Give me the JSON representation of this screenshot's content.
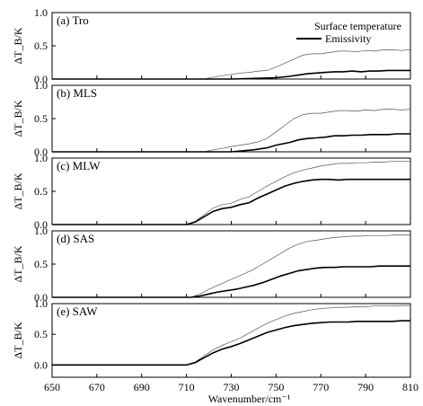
{
  "chart_data": {
    "type": "line",
    "shared_x": {
      "label": "Wavenumber/cm⁻¹",
      "lim": [
        650,
        810
      ],
      "ticks": [
        650,
        670,
        690,
        710,
        730,
        750,
        770,
        790,
        810
      ]
    },
    "legend": {
      "placement": "top-right",
      "entries": [
        "Surface temperature",
        "Emissivity"
      ]
    },
    "ylabel": "ΔT_B/K",
    "panels": [
      {
        "label": "(a) Tro",
        "ylim": [
          0,
          1
        ],
        "yticks": [
          "0.0",
          "0.5",
          "1.0"
        ],
        "series": [
          {
            "name": "Surface temperature",
            "x": [
              650,
              700,
              718,
              722,
              726,
              730,
              734,
              738,
              742,
              746,
              750,
              754,
              758,
              762,
              766,
              770,
              774,
              778,
              782,
              786,
              790,
              794,
              798,
              802,
              806,
              810
            ],
            "y": [
              0,
              0,
              0,
              0.03,
              0.05,
              0.07,
              0.09,
              0.1,
              0.12,
              0.13,
              0.18,
              0.24,
              0.3,
              0.36,
              0.38,
              0.38,
              0.4,
              0.42,
              0.42,
              0.41,
              0.43,
              0.42,
              0.44,
              0.44,
              0.43,
              0.44
            ]
          },
          {
            "name": "Emissivity",
            "x": [
              650,
              700,
              730,
              740,
              750,
              756,
              760,
              764,
              768,
              772,
              776,
              780,
              784,
              788,
              792,
              796,
              800,
              804,
              808,
              810
            ],
            "y": [
              0,
              0,
              0,
              0.01,
              0.02,
              0.04,
              0.06,
              0.08,
              0.09,
              0.1,
              0.11,
              0.11,
              0.12,
              0.11,
              0.12,
              0.12,
              0.13,
              0.13,
              0.13,
              0.13
            ]
          }
        ]
      },
      {
        "label": "(b) MLS",
        "ylim": [
          0,
          1
        ],
        "yticks": [
          "0.0",
          "0.5",
          "1.0"
        ],
        "series": [
          {
            "name": "Surface temperature",
            "x": [
              650,
              700,
              718,
              722,
              726,
              730,
              734,
              738,
              742,
              746,
              750,
              754,
              758,
              762,
              766,
              770,
              774,
              778,
              782,
              786,
              790,
              794,
              798,
              802,
              806,
              810
            ],
            "y": [
              0,
              0,
              0,
              0.03,
              0.05,
              0.08,
              0.1,
              0.12,
              0.15,
              0.2,
              0.3,
              0.4,
              0.5,
              0.56,
              0.58,
              0.58,
              0.6,
              0.62,
              0.62,
              0.61,
              0.63,
              0.62,
              0.64,
              0.64,
              0.63,
              0.64
            ]
          },
          {
            "name": "Emissivity",
            "x": [
              650,
              700,
              730,
              740,
              746,
              750,
              756,
              760,
              764,
              768,
              772,
              776,
              780,
              784,
              788,
              792,
              796,
              800,
              804,
              808,
              810
            ],
            "y": [
              0,
              0,
              0,
              0.03,
              0.06,
              0.1,
              0.14,
              0.18,
              0.2,
              0.21,
              0.22,
              0.24,
              0.24,
              0.25,
              0.25,
              0.26,
              0.26,
              0.26,
              0.27,
              0.27,
              0.27
            ]
          }
        ]
      },
      {
        "label": "(c) MLW",
        "ylim": [
          0,
          1
        ],
        "yticks": [
          "0.0",
          "0.5",
          "1.0"
        ],
        "series": [
          {
            "name": "Surface temperature",
            "x": [
              650,
              700,
              710,
              714,
              718,
              722,
              726,
              730,
              734,
              738,
              742,
              746,
              750,
              754,
              758,
              762,
              766,
              770,
              774,
              778,
              782,
              786,
              790,
              794,
              798,
              802,
              806,
              810
            ],
            "y": [
              0,
              0,
              0,
              0.05,
              0.15,
              0.25,
              0.3,
              0.32,
              0.38,
              0.42,
              0.5,
              0.58,
              0.65,
              0.72,
              0.78,
              0.82,
              0.85,
              0.88,
              0.9,
              0.92,
              0.92,
              0.93,
              0.93,
              0.94,
              0.94,
              0.95,
              0.95,
              0.95
            ]
          },
          {
            "name": "Emissivity",
            "x": [
              650,
              700,
              710,
              714,
              718,
              722,
              726,
              730,
              734,
              738,
              742,
              746,
              750,
              754,
              758,
              762,
              766,
              770,
              774,
              778,
              782,
              786,
              790,
              794,
              798,
              802,
              806,
              810
            ],
            "y": [
              0,
              0,
              0,
              0.04,
              0.12,
              0.2,
              0.24,
              0.26,
              0.3,
              0.33,
              0.4,
              0.46,
              0.52,
              0.58,
              0.62,
              0.65,
              0.67,
              0.68,
              0.68,
              0.67,
              0.68,
              0.68,
              0.68,
              0.68,
              0.68,
              0.68,
              0.68,
              0.68
            ]
          }
        ]
      },
      {
        "label": "(d) SAS",
        "ylim": [
          0,
          1
        ],
        "yticks": [
          "0.0",
          "0.5",
          "1.0"
        ],
        "series": [
          {
            "name": "Surface temperature",
            "x": [
              650,
              700,
              712,
              716,
              720,
              724,
              728,
              732,
              736,
              740,
              744,
              748,
              752,
              756,
              760,
              764,
              768,
              772,
              776,
              780,
              784,
              788,
              792,
              796,
              800,
              804,
              808,
              810
            ],
            "y": [
              0,
              0,
              0,
              0.05,
              0.12,
              0.18,
              0.24,
              0.3,
              0.36,
              0.42,
              0.5,
              0.58,
              0.66,
              0.74,
              0.8,
              0.84,
              0.86,
              0.88,
              0.9,
              0.91,
              0.92,
              0.92,
              0.93,
              0.93,
              0.93,
              0.94,
              0.94,
              0.94
            ]
          },
          {
            "name": "Emissivity",
            "x": [
              650,
              700,
              712,
              716,
              720,
              724,
              728,
              732,
              736,
              740,
              744,
              748,
              752,
              756,
              760,
              764,
              768,
              772,
              776,
              780,
              784,
              788,
              792,
              796,
              800,
              804,
              808,
              810
            ],
            "y": [
              0,
              0,
              0,
              0.02,
              0.05,
              0.08,
              0.1,
              0.12,
              0.15,
              0.18,
              0.22,
              0.27,
              0.32,
              0.36,
              0.4,
              0.42,
              0.44,
              0.45,
              0.45,
              0.46,
              0.46,
              0.46,
              0.46,
              0.47,
              0.47,
              0.47,
              0.47,
              0.47
            ]
          }
        ]
      },
      {
        "label": "(e) SAW",
        "ylim": [
          -0.2,
          1
        ],
        "yticks": [
          "0.0",
          "0.5",
          "1.0"
        ],
        "series": [
          {
            "name": "Surface temperature",
            "x": [
              650,
              700,
              710,
              714,
              718,
              722,
              726,
              730,
              734,
              738,
              742,
              746,
              750,
              754,
              758,
              762,
              766,
              770,
              774,
              778,
              782,
              786,
              790,
              794,
              798,
              802,
              806,
              810
            ],
            "y": [
              0,
              0,
              0,
              0.05,
              0.15,
              0.25,
              0.32,
              0.38,
              0.44,
              0.52,
              0.6,
              0.68,
              0.74,
              0.8,
              0.84,
              0.87,
              0.9,
              0.92,
              0.93,
              0.94,
              0.94,
              0.95,
              0.95,
              0.96,
              0.96,
              0.96,
              0.97,
              0.97
            ]
          },
          {
            "name": "Emissivity",
            "x": [
              650,
              700,
              710,
              714,
              718,
              722,
              726,
              730,
              734,
              738,
              742,
              746,
              750,
              754,
              758,
              762,
              766,
              770,
              774,
              778,
              782,
              786,
              790,
              794,
              798,
              802,
              806,
              810
            ],
            "y": [
              0,
              0,
              0,
              0.04,
              0.12,
              0.2,
              0.26,
              0.3,
              0.35,
              0.41,
              0.47,
              0.53,
              0.57,
              0.61,
              0.64,
              0.66,
              0.68,
              0.69,
              0.7,
              0.7,
              0.7,
              0.71,
              0.71,
              0.71,
              0.71,
              0.71,
              0.72,
              0.72
            ]
          }
        ]
      }
    ]
  }
}
